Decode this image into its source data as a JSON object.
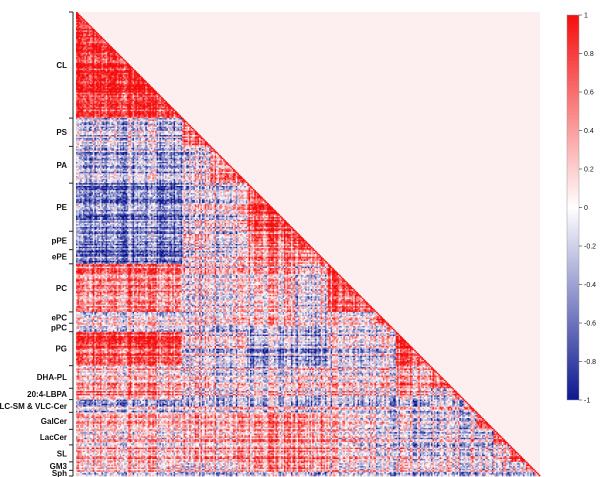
{
  "chart_data": {
    "type": "heatmap",
    "title": "",
    "shape": "lower-triangular correlation matrix",
    "groups": [
      {
        "name": "CL",
        "size": 75
      },
      {
        "name": "PS",
        "size": 20
      },
      {
        "name": "PA",
        "size": 26
      },
      {
        "name": "PE",
        "size": 34
      },
      {
        "name": "pPE",
        "size": 13
      },
      {
        "name": "ePE",
        "size": 10
      },
      {
        "name": "PC",
        "size": 34
      },
      {
        "name": "ePC",
        "size": 8
      },
      {
        "name": "pPC",
        "size": 6
      },
      {
        "name": "PG",
        "size": 24
      },
      {
        "name": "DHA-PL",
        "size": 16
      },
      {
        "name": "20:4-LBPA",
        "size": 8
      },
      {
        "name": "VLC-SM & VLC-Cer",
        "size": 9
      },
      {
        "name": "GalCer",
        "size": 12
      },
      {
        "name": "LacCer",
        "size": 11
      },
      {
        "name": "SL",
        "size": 12
      },
      {
        "name": "GM3",
        "size": 6
      },
      {
        "name": "Sph",
        "size": 4
      }
    ],
    "color_scale": {
      "min": -1,
      "max": 1,
      "low_color": "#0c178f",
      "mid_color": "#ffffff",
      "high_color": "#f50d0d",
      "ticks": [
        1,
        0.8,
        0.6,
        0.4,
        0.2,
        0,
        -0.2,
        -0.4,
        -0.6,
        -0.8,
        -1
      ]
    }
  }
}
